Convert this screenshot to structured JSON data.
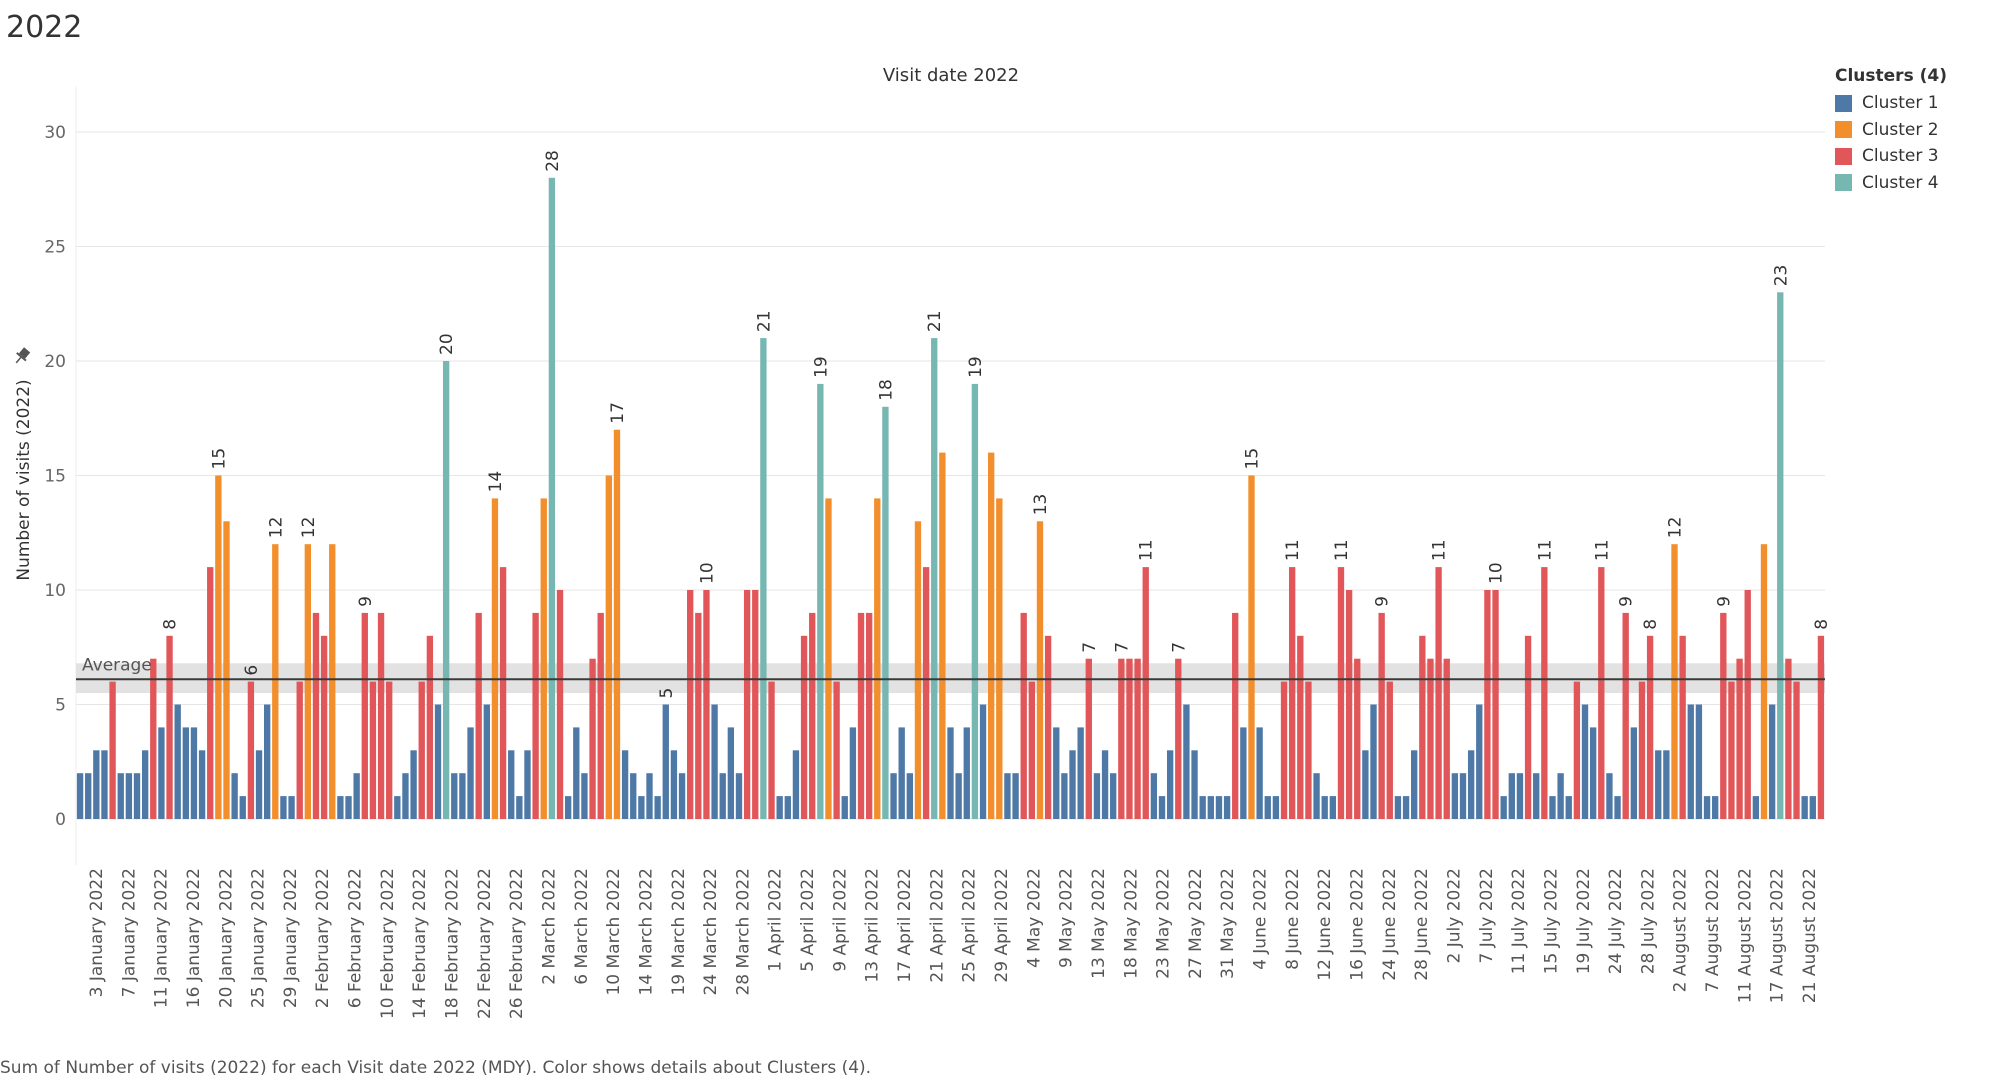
{
  "page": {
    "title": "2022",
    "caption": "Sum of Number of visits (2022) for each Visit date 2022 (MDY).  Color shows details about Clusters (4)."
  },
  "legend": {
    "title": "Clusters (4)",
    "items": [
      {
        "label": "Cluster 1",
        "color": "#4e79a7"
      },
      {
        "label": "Cluster 2",
        "color": "#f28e2b"
      },
      {
        "label": "Cluster 3",
        "color": "#e15759"
      },
      {
        "label": "Cluster 4",
        "color": "#76b7b2"
      }
    ]
  },
  "chart_data": {
    "type": "bar",
    "title": "Visit date 2022",
    "xlabel": "",
    "ylabel": "Number of visits (2022)",
    "ylim": [
      0,
      32
    ],
    "yticks": [
      0,
      5,
      10,
      15,
      20,
      25,
      30
    ],
    "grid": true,
    "legend_position": "top-right",
    "reference_line": {
      "label": "Average",
      "value": 6.1,
      "band": [
        5.5,
        6.8
      ]
    },
    "x_tick_labels": [
      "3 January 2022",
      "7 January 2022",
      "11 January 2022",
      "16 January 2022",
      "20 January 2022",
      "25 January 2022",
      "29 January 2022",
      "2 February 2022",
      "6 February 2022",
      "10 February 2022",
      "14 February 2022",
      "18 February 2022",
      "22 February 2022",
      "26 February 2022",
      "2 March 2022",
      "6 March 2022",
      "10 March 2022",
      "14 March 2022",
      "19 March 2022",
      "24 March 2022",
      "28 March 2022",
      "1 April 2022",
      "5 April 2022",
      "9 April 2022",
      "13 April 2022",
      "17 April 2022",
      "21 April 2022",
      "25 April 2022",
      "29 April 2022",
      "4 May 2022",
      "9 May 2022",
      "13 May 2022",
      "18 May 2022",
      "23 May 2022",
      "27 May 2022",
      "31 May 2022",
      "4 June 2022",
      "8 June 2022",
      "12 June 2022",
      "16 June 2022",
      "24 June 2022",
      "28 June 2022",
      "2 July 2022",
      "7 July 2022",
      "11 July 2022",
      "15 July 2022",
      "19 July 2022",
      "24 July 2022",
      "28 July 2022",
      "2 August 2022",
      "7 August 2022",
      "11 August 2022",
      "17 August 2022",
      "21 August 2022"
    ],
    "values": [
      2,
      2,
      3,
      3,
      6,
      2,
      2,
      2,
      3,
      7,
      4,
      8,
      5,
      4,
      4,
      3,
      11,
      15,
      13,
      2,
      1,
      6,
      3,
      5,
      12,
      1,
      1,
      6,
      12,
      9,
      8,
      12,
      1,
      1,
      2,
      9,
      6,
      9,
      6,
      1,
      2,
      3,
      6,
      8,
      5,
      20,
      2,
      2,
      4,
      9,
      5,
      14,
      11,
      3,
      1,
      3,
      9,
      14,
      28,
      10,
      1,
      4,
      2,
      7,
      9,
      15,
      17,
      3,
      2,
      1,
      2,
      1,
      5,
      3,
      2,
      10,
      9,
      10,
      5,
      2,
      4,
      2,
      10,
      10,
      21,
      6,
      1,
      1,
      3,
      8,
      9,
      19,
      14,
      6,
      1,
      4,
      9,
      9,
      14,
      18,
      2,
      4,
      2,
      13,
      11,
      21,
      16,
      4,
      2,
      4,
      19,
      5,
      16,
      14,
      2,
      2,
      9,
      6,
      13,
      8,
      4,
      2,
      3,
      4,
      7,
      2,
      3,
      2,
      7,
      7,
      7,
      11,
      2,
      1,
      3,
      7,
      5,
      3,
      1,
      1,
      1,
      1,
      9,
      4,
      15,
      4,
      1,
      1,
      6,
      11,
      8,
      6,
      2,
      1,
      1,
      11,
      10,
      7,
      3,
      5,
      9,
      6,
      1,
      1,
      3,
      8,
      7,
      11,
      7,
      2,
      2,
      3,
      5,
      10,
      10,
      1,
      2,
      2,
      8,
      2,
      11,
      1,
      2,
      1,
      6,
      5,
      4,
      11,
      2,
      1,
      9,
      4,
      6,
      8,
      3,
      3,
      12,
      8,
      5,
      5,
      1,
      1,
      9,
      6,
      7,
      10,
      1,
      12,
      5,
      23,
      7,
      6,
      1,
      1,
      8
    ],
    "clusters": [
      1,
      1,
      1,
      1,
      3,
      1,
      1,
      1,
      1,
      3,
      1,
      3,
      1,
      1,
      1,
      1,
      3,
      2,
      2,
      1,
      1,
      3,
      1,
      1,
      2,
      1,
      1,
      3,
      2,
      3,
      3,
      2,
      1,
      1,
      1,
      3,
      3,
      3,
      3,
      1,
      1,
      1,
      3,
      3,
      1,
      4,
      1,
      1,
      1,
      3,
      1,
      2,
      3,
      1,
      1,
      1,
      3,
      2,
      4,
      3,
      1,
      1,
      1,
      3,
      3,
      2,
      2,
      1,
      1,
      1,
      1,
      1,
      1,
      1,
      1,
      3,
      3,
      3,
      1,
      1,
      1,
      1,
      3,
      3,
      4,
      3,
      1,
      1,
      1,
      3,
      3,
      4,
      2,
      3,
      1,
      1,
      3,
      3,
      2,
      4,
      1,
      1,
      1,
      2,
      3,
      4,
      2,
      1,
      1,
      1,
      4,
      1,
      2,
      2,
      1,
      1,
      3,
      3,
      2,
      3,
      1,
      1,
      1,
      1,
      3,
      1,
      1,
      1,
      3,
      3,
      3,
      3,
      1,
      1,
      1,
      3,
      1,
      1,
      1,
      1,
      1,
      1,
      3,
      1,
      2,
      1,
      1,
      1,
      3,
      3,
      3,
      3,
      1,
      1,
      1,
      3,
      3,
      3,
      1,
      1,
      3,
      3,
      1,
      1,
      1,
      3,
      3,
      3,
      3,
      1,
      1,
      1,
      1,
      3,
      3,
      1,
      1,
      1,
      3,
      1,
      3,
      1,
      1,
      1,
      3,
      1,
      1,
      3,
      1,
      1,
      3,
      1,
      3,
      3,
      1,
      1,
      2,
      3,
      1,
      1,
      1,
      1,
      3,
      3,
      3,
      3,
      1,
      2,
      1,
      4,
      3,
      3,
      1,
      1,
      3
    ],
    "data_labels": [
      {
        "index": 11,
        "text": "8"
      },
      {
        "index": 17,
        "text": "15"
      },
      {
        "index": 21,
        "text": "6"
      },
      {
        "index": 24,
        "text": "12"
      },
      {
        "index": 28,
        "text": "12"
      },
      {
        "index": 35,
        "text": "9"
      },
      {
        "index": 45,
        "text": "20"
      },
      {
        "index": 51,
        "text": "14"
      },
      {
        "index": 58,
        "text": "28"
      },
      {
        "index": 66,
        "text": "17"
      },
      {
        "index": 72,
        "text": "5"
      },
      {
        "index": 77,
        "text": "10"
      },
      {
        "index": 84,
        "text": "21"
      },
      {
        "index": 91,
        "text": "19"
      },
      {
        "index": 99,
        "text": "18"
      },
      {
        "index": 105,
        "text": "21"
      },
      {
        "index": 110,
        "text": "19"
      },
      {
        "index": 118,
        "text": "13"
      },
      {
        "index": 124,
        "text": "7"
      },
      {
        "index": 128,
        "text": "7"
      },
      {
        "index": 131,
        "text": "11"
      },
      {
        "index": 135,
        "text": "7"
      },
      {
        "index": 144,
        "text": "15"
      },
      {
        "index": 149,
        "text": "11"
      },
      {
        "index": 155,
        "text": "11"
      },
      {
        "index": 160,
        "text": "9"
      },
      {
        "index": 167,
        "text": "11"
      },
      {
        "index": 174,
        "text": "10"
      },
      {
        "index": 180,
        "text": "11"
      },
      {
        "index": 187,
        "text": "11"
      },
      {
        "index": 190,
        "text": "9"
      },
      {
        "index": 193,
        "text": "8"
      },
      {
        "index": 196,
        "text": "12"
      },
      {
        "index": 202,
        "text": "9"
      },
      {
        "index": 209,
        "text": "23"
      },
      {
        "index": 214,
        "text": "8"
      }
    ]
  }
}
